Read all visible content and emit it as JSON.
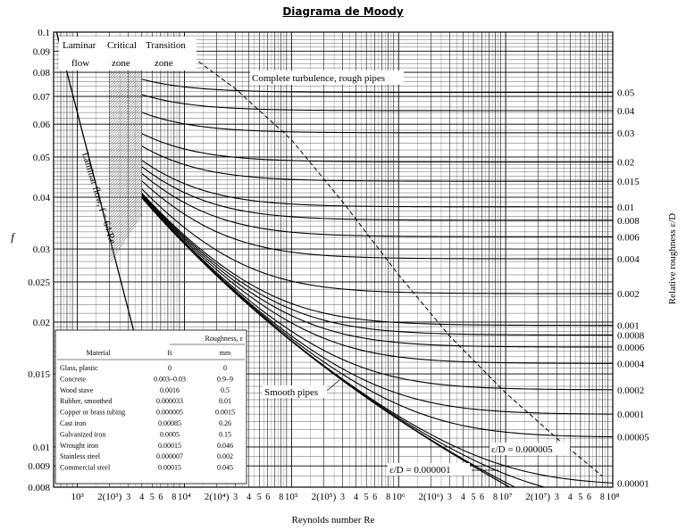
{
  "chart_data": {
    "type": "line",
    "title": "Diagrama de Moody",
    "xlabel": "Reynolds number Re",
    "ylabel": "f",
    "y2label": "Relative roughness ε/D",
    "xscale": "log",
    "yscale": "log",
    "xlim": [
      600,
      100000000
    ],
    "ylim": [
      0.008,
      0.1
    ],
    "grid": true,
    "x_tick_labels": [
      {
        "x": 1000,
        "label": "10³"
      },
      {
        "x": 2000,
        "label": "2(10³)"
      },
      {
        "x": 3000,
        "label": "3"
      },
      {
        "x": 4000,
        "label": "4"
      },
      {
        "x": 5000,
        "label": "5"
      },
      {
        "x": 6000,
        "label": "6"
      },
      {
        "x": 8000,
        "label": "8"
      },
      {
        "x": 10000,
        "label": "10⁴"
      },
      {
        "x": 20000,
        "label": "2(10⁴)"
      },
      {
        "x": 30000,
        "label": "3"
      },
      {
        "x": 40000,
        "label": "4"
      },
      {
        "x": 50000,
        "label": "5"
      },
      {
        "x": 60000,
        "label": "6"
      },
      {
        "x": 80000,
        "label": "8"
      },
      {
        "x": 100000,
        "label": "10⁵"
      },
      {
        "x": 200000,
        "label": "2(10⁵)"
      },
      {
        "x": 300000,
        "label": "3"
      },
      {
        "x": 400000,
        "label": "4"
      },
      {
        "x": 500000,
        "label": "5"
      },
      {
        "x": 600000,
        "label": "6"
      },
      {
        "x": 800000,
        "label": "8"
      },
      {
        "x": 1000000,
        "label": "10⁶"
      },
      {
        "x": 2000000,
        "label": "2(10⁶)"
      },
      {
        "x": 3000000,
        "label": "3"
      },
      {
        "x": 4000000,
        "label": "4"
      },
      {
        "x": 5000000,
        "label": "5"
      },
      {
        "x": 6000000,
        "label": "6"
      },
      {
        "x": 8000000,
        "label": "8"
      },
      {
        "x": 10000000,
        "label": "10⁷"
      },
      {
        "x": 20000000,
        "label": "2(10⁷)"
      },
      {
        "x": 30000000,
        "label": "3"
      },
      {
        "x": 40000000,
        "label": "4"
      },
      {
        "x": 50000000,
        "label": "5"
      },
      {
        "x": 60000000,
        "label": "6"
      },
      {
        "x": 80000000,
        "label": "8"
      },
      {
        "x": 100000000,
        "label": "10⁸"
      }
    ],
    "y_tick_labels": [
      "0.1",
      "0.09",
      "0.08",
      "0.07",
      "0.06",
      "0.05",
      "0.04",
      "0.03",
      "0.025",
      "0.02",
      "0.015",
      "0.01",
      "0.009",
      "0.008"
    ],
    "y_ticks": [
      0.1,
      0.09,
      0.08,
      0.07,
      0.06,
      0.05,
      0.04,
      0.03,
      0.025,
      0.02,
      0.015,
      0.01,
      0.009,
      0.008
    ],
    "relative_roughness": [
      {
        "label": "0.05",
        "value": 0.05
      },
      {
        "label": "0.04",
        "value": 0.04
      },
      {
        "label": "0.03",
        "value": 0.03
      },
      {
        "label": "0.02",
        "value": 0.02
      },
      {
        "label": "0.015",
        "value": 0.015
      },
      {
        "label": "0.01",
        "value": 0.01
      },
      {
        "label": "0.008",
        "value": 0.008
      },
      {
        "label": "0.006",
        "value": 0.006
      },
      {
        "label": "0.004",
        "value": 0.004
      },
      {
        "label": "0.002",
        "value": 0.002
      },
      {
        "label": "0.001",
        "value": 0.001
      },
      {
        "label": "0.0008",
        "value": 0.0008
      },
      {
        "label": "0.0006",
        "value": 0.0006
      },
      {
        "label": "0.0004",
        "value": 0.0004
      },
      {
        "label": "0.0002",
        "value": 0.0002
      },
      {
        "label": "0.0001",
        "value": 0.0001
      },
      {
        "label": "0.00005",
        "value": 5e-05
      },
      {
        "label": "0.00001",
        "value": 1e-05
      }
    ],
    "extra_curves": [
      {
        "value": 5e-06
      },
      {
        "value": 1e-06
      }
    ],
    "annotations": {
      "laminar_top": "Laminar",
      "laminar_bottom": "flow",
      "critical_top": "Critical",
      "critical_bottom": "zone",
      "transition_top": "Transition",
      "transition_bottom": "zone",
      "complete_turbulence": "Complete turbulence, rough pipes",
      "laminar_line": "Laminar flow, f = 64/Re",
      "smooth_pipes": "Smooth pipes",
      "ed_5e6": "ε/D = 0.000005",
      "ed_1e6": "ε/D = 0.000001"
    },
    "table": {
      "header_roughness": "Roughness, ε",
      "header_material": "Material",
      "header_ft": "ft",
      "header_mm": "mm",
      "rows": [
        {
          "material": "Glass, plastic",
          "ft": "0",
          "mm": "0"
        },
        {
          "material": "Concrete",
          "ft": "0.003–0.03",
          "mm": "0.9–9"
        },
        {
          "material": "Wood stave",
          "ft": "0.0016",
          "mm": "0.5"
        },
        {
          "material": "Rubber, smoothed",
          "ft": "0.000033",
          "mm": "0.01"
        },
        {
          "material": "Copper or brass tubing",
          "ft": "0.000005",
          "mm": "0.0015"
        },
        {
          "material": "Cast iron",
          "ft": "0.00085",
          "mm": "0.26"
        },
        {
          "material": "Galvanized iron",
          "ft": "0.0005",
          "mm": "0.15"
        },
        {
          "material": "Wrought iron",
          "ft": "0.00015",
          "mm": "0.046"
        },
        {
          "material": "Stainless steel",
          "ft": "0.000007",
          "mm": "0.002"
        },
        {
          "material": "Commercial steel",
          "ft": "0.00015",
          "mm": "0.045"
        }
      ]
    }
  }
}
